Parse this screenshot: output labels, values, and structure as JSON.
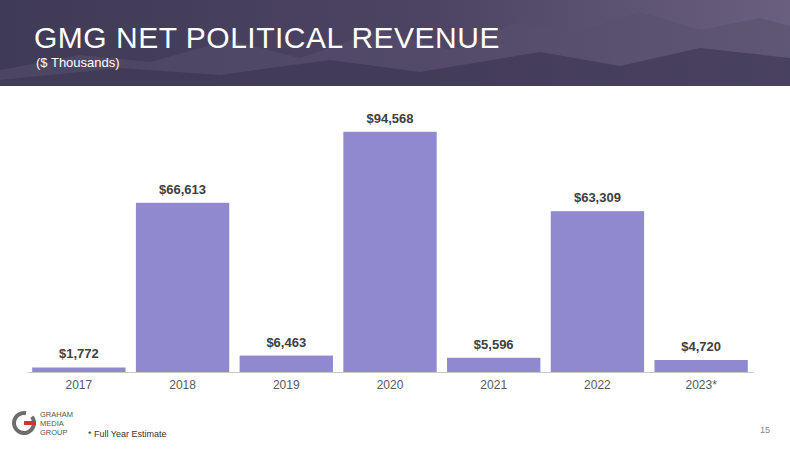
{
  "chart_data": {
    "type": "bar",
    "title": "GMG NET POLITICAL REVENUE",
    "subtitle": "($ Thousands)",
    "categories": [
      "2017",
      "2018",
      "2019",
      "2020",
      "2021",
      "2022",
      "2023*"
    ],
    "values": [
      1772,
      66613,
      6463,
      94568,
      5596,
      63309,
      4720
    ],
    "value_labels": [
      "$1,772",
      "$66,613",
      "$6,463",
      "$94,568",
      "$5,596",
      "$63,309",
      "$4,720"
    ],
    "color": "#9189cf",
    "ylim": [
      0,
      100000
    ],
    "data_labels": true,
    "tick_labels": "x",
    "footnote": "* Full Year Estimate"
  },
  "page": {
    "logo": [
      "GRAHAM",
      "MEDIA",
      "GROUP"
    ],
    "page_number": "15"
  }
}
